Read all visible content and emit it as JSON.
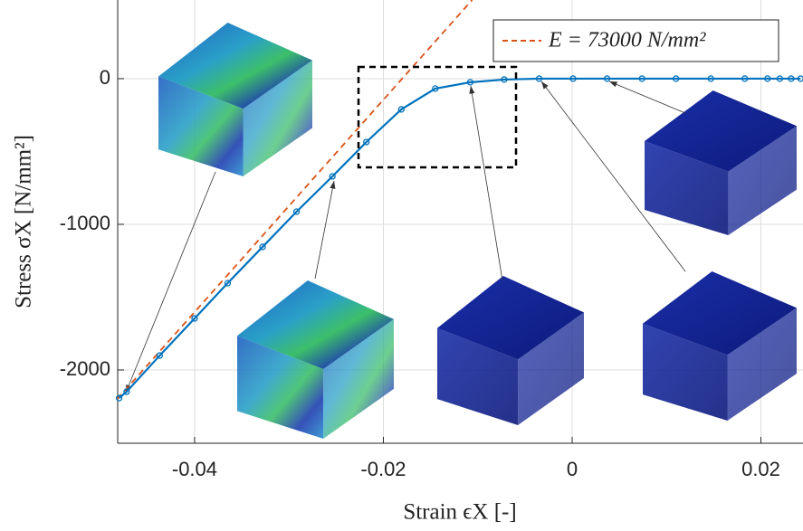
{
  "chart_data": {
    "type": "line",
    "x_label": "Strain ϵX [-]",
    "y_label": "Stress σX [N/mm²]",
    "xlim": [
      -0.04815,
      0.02446
    ],
    "ylim": [
      -2503,
      540
    ],
    "xticks": [
      -0.04,
      -0.02,
      0,
      0.02
    ],
    "yticks": [
      -2000,
      -1000,
      0
    ],
    "grid": true,
    "legend": "upper right",
    "series": [
      {
        "name": "E = 73000 N/mm²",
        "color": "#d95319",
        "style": "dashed",
        "markers": false,
        "x": [
          -0.0482,
          -0.0106
        ],
        "values": [
          -2200,
          540
        ]
      },
      {
        "name": null,
        "color": "#0072bd",
        "style": "solid",
        "markers": true,
        "x": [
          -0.048,
          -0.0472,
          -0.0437,
          -0.04,
          -0.0365,
          -0.0328,
          -0.0292,
          -0.0254,
          -0.0218,
          -0.0181,
          -0.0145,
          -0.0108,
          -0.0072,
          -0.0035,
          0.0001,
          0.0037,
          0.0074,
          0.011,
          0.0147,
          0.0183,
          0.0207,
          0.022,
          0.0232,
          0.0242
        ],
        "values": [
          -2193,
          -2149,
          -1901,
          -1646,
          -1404,
          -1155,
          -913,
          -671,
          -435,
          -211,
          -68,
          -25,
          -6,
          0,
          0,
          0,
          0,
          0,
          0,
          0,
          0,
          0,
          0,
          0
        ]
      }
    ]
  }
}
